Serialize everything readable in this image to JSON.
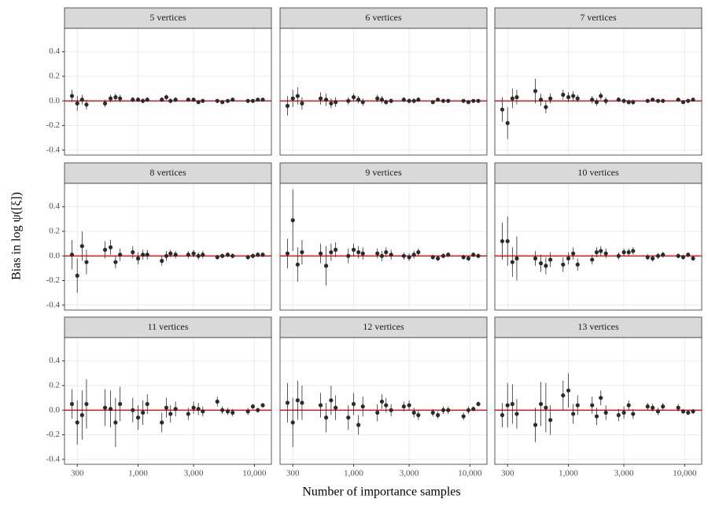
{
  "chart_data": {
    "type": "scatter",
    "xlabel": "Number of importance samples",
    "ylabel": "Bias in log ψ([ξ])",
    "xlog": true,
    "grid": true,
    "xlim": [
      233,
      14000
    ],
    "ylim": [
      -0.44,
      0.59
    ],
    "xticks": [
      300,
      {
        "value": 1000,
        "label": "1,000"
      },
      {
        "value": 3000,
        "label": "3,000"
      },
      {
        "value": 10000,
        "label": "10,000"
      }
    ],
    "yticks": [
      -0.4,
      -0.2,
      {
        "value": 0,
        "label": "0.0"
      },
      0.2,
      0.4
    ],
    "hline": 0,
    "hline_color": "#e41a1c",
    "color": "#2b2b2b",
    "x": [
      270,
      300,
      330,
      360,
      520,
      580,
      640,
      700,
      900,
      1000,
      1100,
      1200,
      1600,
      1750,
      1900,
      2100,
      2700,
      3000,
      3300,
      3600,
      4800,
      5300,
      5900,
      6500,
      8800,
      9700,
      10700,
      11800
    ],
    "panels": [
      {
        "title": "5 vertices",
        "values": [
          0.04,
          -0.02,
          0.01,
          -0.03,
          -0.02,
          0.02,
          0.03,
          0.02,
          0.01,
          0.01,
          0.0,
          0.01,
          0.01,
          0.03,
          0.0,
          0.01,
          0.01,
          0.01,
          -0.01,
          0.0,
          0.0,
          -0.01,
          0.0,
          0.01,
          0.0,
          0.0,
          0.01,
          0.01
        ],
        "errors": [
          0.05,
          0.06,
          0.04,
          0.04,
          0.03,
          0.03,
          0.03,
          0.03,
          0.02,
          0.02,
          0.02,
          0.02,
          0.02,
          0.02,
          0.02,
          0.02,
          0.015,
          0.015,
          0.015,
          0.015,
          0.01,
          0.01,
          0.01,
          0.01,
          0.01,
          0.01,
          0.01,
          0.01
        ]
      },
      {
        "title": "6 vertices",
        "values": [
          -0.04,
          0.02,
          0.04,
          -0.02,
          0.02,
          0.01,
          -0.02,
          -0.01,
          0.0,
          0.03,
          0.01,
          -0.01,
          0.02,
          0.01,
          -0.01,
          0.0,
          0.01,
          0.0,
          0.0,
          0.01,
          -0.01,
          0.01,
          0.0,
          0.0,
          0.0,
          -0.01,
          0.0,
          0.0
        ],
        "errors": [
          0.08,
          0.07,
          0.07,
          0.05,
          0.05,
          0.05,
          0.04,
          0.04,
          0.03,
          0.03,
          0.03,
          0.03,
          0.03,
          0.03,
          0.02,
          0.02,
          0.02,
          0.02,
          0.02,
          0.02,
          0.015,
          0.015,
          0.015,
          0.015,
          0.01,
          0.01,
          0.01,
          0.01
        ]
      },
      {
        "title": "7 vertices",
        "values": [
          -0.07,
          -0.18,
          0.02,
          0.03,
          0.08,
          0.01,
          -0.05,
          0.02,
          0.05,
          0.03,
          0.04,
          0.02,
          0.01,
          -0.01,
          0.04,
          0.0,
          0.01,
          0.0,
          -0.01,
          -0.01,
          0.0,
          0.01,
          0.0,
          0.0,
          0.01,
          -0.01,
          0.0,
          0.01
        ],
        "errors": [
          0.1,
          0.13,
          0.08,
          0.06,
          0.1,
          0.05,
          0.05,
          0.04,
          0.04,
          0.04,
          0.04,
          0.03,
          0.03,
          0.03,
          0.03,
          0.03,
          0.02,
          0.02,
          0.02,
          0.02,
          0.015,
          0.015,
          0.015,
          0.015,
          0.01,
          0.01,
          0.01,
          0.01
        ]
      },
      {
        "title": "8 vertices",
        "values": [
          0.01,
          -0.16,
          0.08,
          -0.05,
          0.05,
          0.07,
          -0.05,
          0.01,
          0.03,
          -0.02,
          0.01,
          0.01,
          -0.04,
          0.0,
          0.02,
          0.01,
          0.01,
          0.02,
          0.0,
          0.01,
          -0.01,
          0.0,
          0.01,
          0.0,
          -0.01,
          0.0,
          0.01,
          0.01
        ],
        "errors": [
          0.12,
          0.14,
          0.12,
          0.1,
          0.07,
          0.06,
          0.05,
          0.05,
          0.05,
          0.05,
          0.04,
          0.04,
          0.04,
          0.04,
          0.03,
          0.03,
          0.03,
          0.03,
          0.03,
          0.03,
          0.02,
          0.02,
          0.02,
          0.02,
          0.02,
          0.02,
          0.02,
          0.02
        ]
      },
      {
        "title": "9 vertices",
        "values": [
          0.02,
          0.29,
          -0.07,
          0.03,
          0.02,
          -0.08,
          0.03,
          0.05,
          0.0,
          0.05,
          0.03,
          0.02,
          0.02,
          0.0,
          0.03,
          0.01,
          0.0,
          -0.01,
          0.01,
          0.03,
          -0.01,
          -0.02,
          0.0,
          0.01,
          -0.01,
          -0.02,
          0.01,
          0.0
        ],
        "errors": [
          0.12,
          0.25,
          0.14,
          0.1,
          0.08,
          0.16,
          0.07,
          0.06,
          0.06,
          0.05,
          0.05,
          0.05,
          0.04,
          0.04,
          0.04,
          0.04,
          0.03,
          0.03,
          0.03,
          0.03,
          0.02,
          0.02,
          0.02,
          0.02,
          0.02,
          0.02,
          0.02,
          0.02
        ]
      },
      {
        "title": "10 vertices",
        "values": [
          0.12,
          0.12,
          -0.05,
          -0.02,
          -0.02,
          -0.06,
          -0.08,
          -0.03,
          -0.07,
          -0.02,
          0.02,
          -0.07,
          -0.03,
          0.03,
          0.04,
          0.02,
          0.0,
          0.03,
          0.03,
          0.04,
          -0.01,
          -0.02,
          0.0,
          0.01,
          0.0,
          -0.01,
          0.01,
          -0.02
        ],
        "errors": [
          0.15,
          0.2,
          0.12,
          0.18,
          0.06,
          0.07,
          0.07,
          0.06,
          0.06,
          0.05,
          0.05,
          0.05,
          0.04,
          0.04,
          0.04,
          0.04,
          0.03,
          0.03,
          0.03,
          0.03,
          0.025,
          0.025,
          0.025,
          0.025,
          0.02,
          0.02,
          0.02,
          0.02
        ]
      },
      {
        "title": "11 vertices",
        "values": [
          0.05,
          -0.1,
          -0.04,
          0.05,
          0.02,
          0.01,
          -0.1,
          0.05,
          0.0,
          -0.06,
          -0.02,
          0.05,
          -0.1,
          0.02,
          -0.03,
          0.01,
          -0.03,
          0.02,
          0.01,
          -0.01,
          0.07,
          0.0,
          -0.01,
          -0.02,
          -0.01,
          0.03,
          0.0,
          0.04
        ],
        "errors": [
          0.12,
          0.18,
          0.2,
          0.2,
          0.15,
          0.15,
          0.2,
          0.14,
          0.1,
          0.1,
          0.1,
          0.08,
          0.08,
          0.08,
          0.07,
          0.06,
          0.05,
          0.05,
          0.05,
          0.04,
          0.04,
          0.03,
          0.03,
          0.03,
          0.03,
          0.02,
          0.02,
          0.02
        ]
      },
      {
        "title": "12 vertices",
        "values": [
          0.06,
          -0.1,
          0.08,
          0.06,
          0.04,
          -0.06,
          0.08,
          0.02,
          -0.06,
          0.05,
          -0.12,
          0.03,
          -0.02,
          0.07,
          0.04,
          0.0,
          0.03,
          0.04,
          -0.02,
          -0.04,
          -0.02,
          -0.04,
          0.0,
          0.0,
          -0.05,
          0.0,
          0.01,
          0.05
        ],
        "errors": [
          0.16,
          0.2,
          0.16,
          0.14,
          0.1,
          0.12,
          0.12,
          0.1,
          0.1,
          0.09,
          0.08,
          0.08,
          0.07,
          0.06,
          0.06,
          0.05,
          0.04,
          0.04,
          0.04,
          0.04,
          0.03,
          0.03,
          0.03,
          0.03,
          0.03,
          0.03,
          0.02,
          0.02
        ]
      },
      {
        "title": "13 vertices",
        "values": [
          -0.04,
          0.04,
          0.05,
          -0.03,
          -0.12,
          0.05,
          0.02,
          -0.08,
          0.12,
          0.16,
          -0.03,
          0.04,
          0.04,
          -0.05,
          0.1,
          -0.02,
          -0.04,
          -0.02,
          0.04,
          -0.03,
          0.03,
          0.02,
          -0.01,
          0.03,
          0.02,
          -0.01,
          -0.02,
          -0.01
        ],
        "errors": [
          0.1,
          0.18,
          0.16,
          0.12,
          0.14,
          0.18,
          0.2,
          0.12,
          0.12,
          0.14,
          0.08,
          0.08,
          0.07,
          0.07,
          0.06,
          0.06,
          0.05,
          0.05,
          0.04,
          0.04,
          0.03,
          0.03,
          0.03,
          0.03,
          0.03,
          0.02,
          0.02,
          0.02
        ]
      }
    ]
  }
}
